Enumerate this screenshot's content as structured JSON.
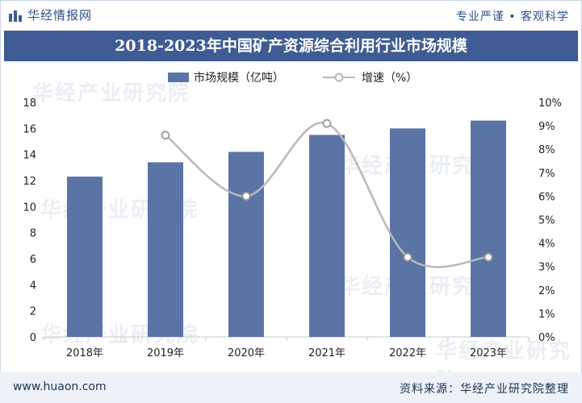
{
  "header": {
    "brand": "华经情报网",
    "slogan": "专业严谨 • 客观科学"
  },
  "title": "2018-2023年中国矿产资源综合利用行业市场规模",
  "legend": {
    "bar_label": "市场规模（亿吨）",
    "line_label": "增速（%）"
  },
  "watermark": "华经产业研究院",
  "footer": {
    "site": "www.huaon.com",
    "source": "资料来源：华经产业研究院整理"
  },
  "colors": {
    "bar": "#5b74a6",
    "line": "#b9b9b9",
    "title_bg": "#3e5c93"
  },
  "chart_data": {
    "type": "bar",
    "categories": [
      "2018年",
      "2019年",
      "2020年",
      "2021年",
      "2022年",
      "2023年"
    ],
    "series": [
      {
        "name": "市场规模（亿吨）",
        "type": "bar",
        "axis": "left",
        "values": [
          12.3,
          13.4,
          14.2,
          15.5,
          16.0,
          16.6
        ]
      },
      {
        "name": "增速（%）",
        "type": "line",
        "axis": "right",
        "smooth": true,
        "values": [
          null,
          8.6,
          6.0,
          9.1,
          3.4,
          3.4
        ]
      }
    ],
    "y_left": {
      "min": 0,
      "max": 18,
      "step": 2,
      "ticks": [
        "0",
        "2",
        "4",
        "6",
        "8",
        "10",
        "12",
        "14",
        "16",
        "18"
      ]
    },
    "y_right": {
      "min": 0,
      "max": 10,
      "step": 1,
      "ticks": [
        "0%",
        "1%",
        "2%",
        "3%",
        "4%",
        "5%",
        "6%",
        "7%",
        "8%",
        "9%",
        "10%"
      ]
    },
    "grid": false,
    "legend_position": "top"
  }
}
